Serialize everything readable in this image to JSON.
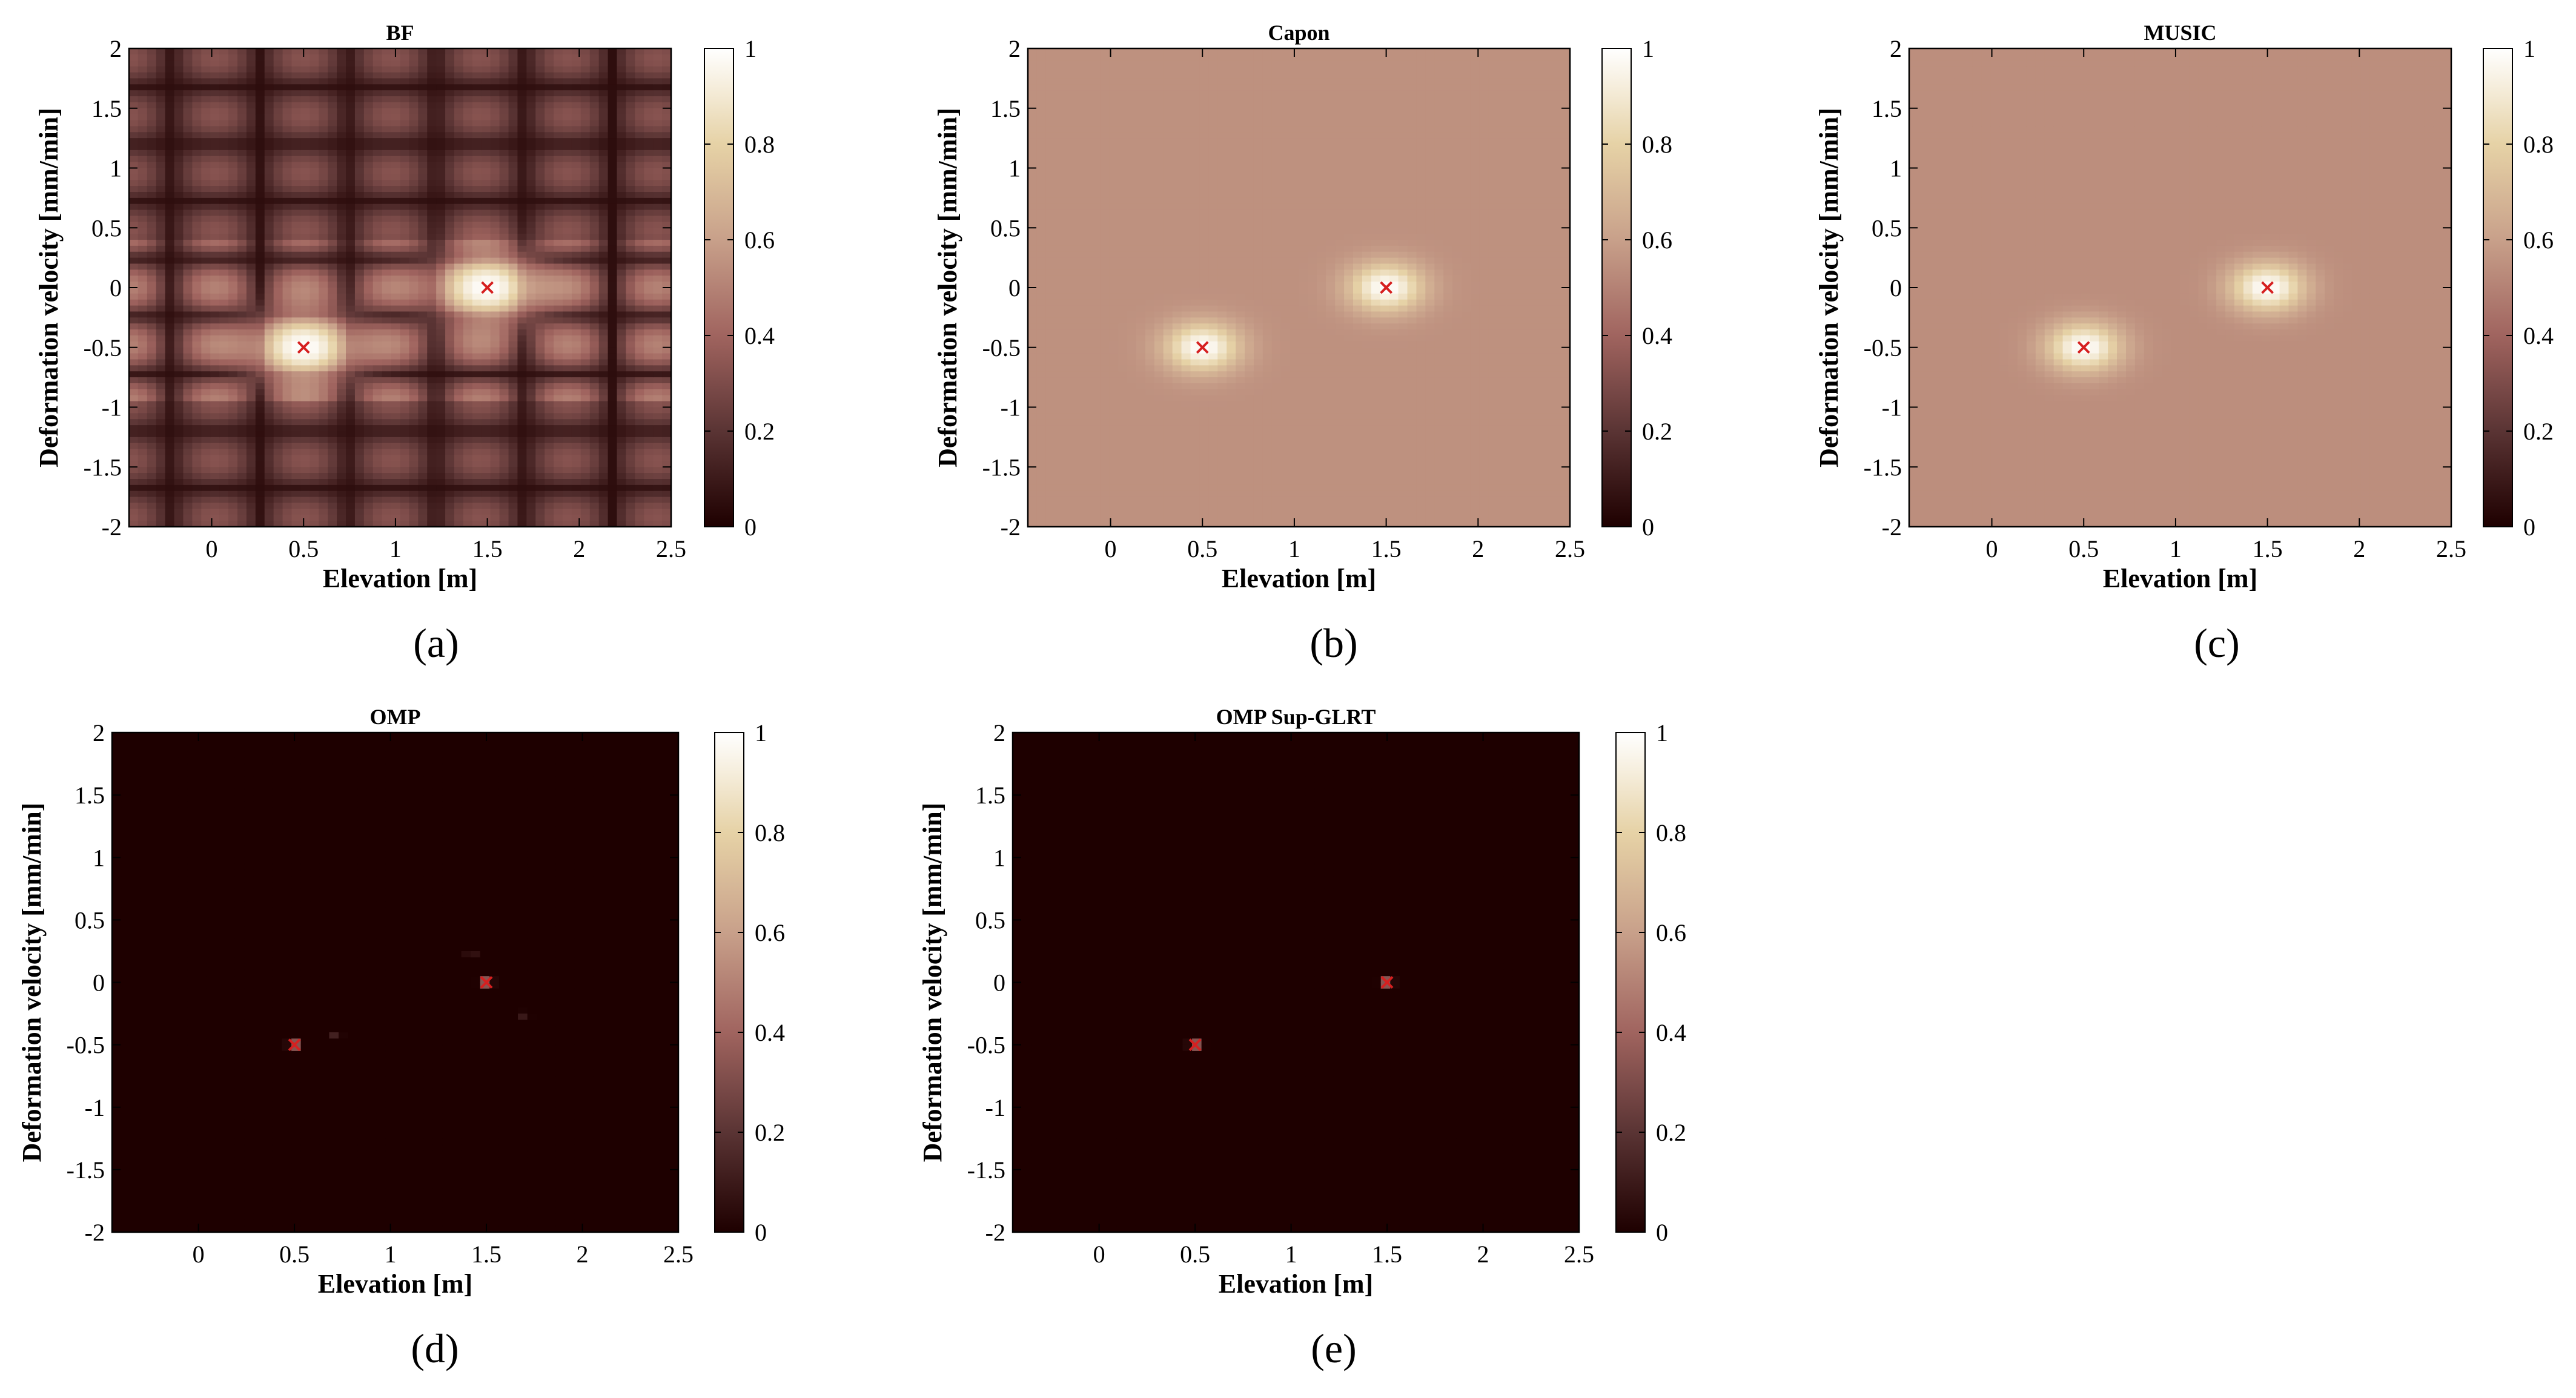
{
  "figure": {
    "colormap": [
      "#1e0000",
      "#5a3434",
      "#a0645f",
      "#c8a08a",
      "#e6d2a6",
      "#ffffff"
    ],
    "marker_color": "#d62020"
  },
  "chart_data": [
    {
      "type": "heatmap",
      "title": "BF",
      "xlabel": "Elevation [m]",
      "ylabel": "Deformation velocity [mm/min]",
      "caption": "(a)",
      "xlim": [
        -0.45,
        2.5
      ],
      "ylim": [
        -2,
        2
      ],
      "x_ticks": [
        "0",
        "0.5",
        "1",
        "1.5",
        "2",
        "2.5"
      ],
      "y_ticks": [
        "2",
        "1.5",
        "1",
        "0.5",
        "0",
        "-0.5",
        "-1",
        "-1.5",
        "-2"
      ],
      "colorbar": {
        "ticks": [
          "1",
          "0.8",
          "0.6",
          "0.4",
          "0.2",
          "0"
        ],
        "range": [
          0,
          1
        ]
      },
      "background_level": 0.3,
      "sidelobes": true,
      "peak_width": 0.28,
      "targets": [
        {
          "x": 0.5,
          "y": -0.5
        },
        {
          "x": 1.5,
          "y": 0
        }
      ]
    },
    {
      "type": "heatmap",
      "title": "Capon",
      "xlabel": "Elevation [m]",
      "ylabel": "Deformation velocity [mm/min]",
      "caption": "(b)",
      "xlim": [
        -0.45,
        2.5
      ],
      "ylim": [
        -2,
        2
      ],
      "x_ticks": [
        "0",
        "0.5",
        "1",
        "1.5",
        "2",
        "2.5"
      ],
      "y_ticks": [
        "2",
        "1.5",
        "1",
        "0.5",
        "0",
        "-0.5",
        "-1",
        "-1.5",
        "-2"
      ],
      "colorbar": {
        "ticks": [
          "1",
          "0.8",
          "0.6",
          "0.4",
          "0.2",
          "0"
        ],
        "range": [
          0,
          1
        ]
      },
      "background_level": 0.55,
      "sidelobes": false,
      "peak_width": 0.2,
      "targets": [
        {
          "x": 0.5,
          "y": -0.5
        },
        {
          "x": 1.5,
          "y": 0
        }
      ]
    },
    {
      "type": "heatmap",
      "title": "MUSIC",
      "xlabel": "Elevation [m]",
      "ylabel": "Deformation velocity [mm/min]",
      "caption": "(c)",
      "xlim": [
        -0.45,
        2.5
      ],
      "ylim": [
        -2,
        2
      ],
      "x_ticks": [
        "0",
        "0.5",
        "1",
        "1.5",
        "2",
        "2.5"
      ],
      "y_ticks": [
        "2",
        "1.5",
        "1",
        "0.5",
        "0",
        "-0.5",
        "-1",
        "-1.5",
        "-2"
      ],
      "colorbar": {
        "ticks": [
          "1",
          "0.8",
          "0.6",
          "0.4",
          "0.2",
          "0"
        ],
        "range": [
          0,
          1
        ]
      },
      "background_level": 0.54,
      "sidelobes": false,
      "peak_width": 0.2,
      "targets": [
        {
          "x": 0.5,
          "y": -0.5
        },
        {
          "x": 1.5,
          "y": 0
        }
      ]
    },
    {
      "type": "heatmap",
      "title": "OMP",
      "xlabel": "Elevation [m]",
      "ylabel": "Deformation velocity [mm/min]",
      "caption": "(d)",
      "xlim": [
        -0.45,
        2.5
      ],
      "ylim": [
        -2,
        2
      ],
      "x_ticks": [
        "0",
        "0.5",
        "1",
        "1.5",
        "2",
        "2.5"
      ],
      "y_ticks": [
        "2",
        "1.5",
        "1",
        "0.5",
        "0",
        "-0.5",
        "-1",
        "-1.5",
        "-2"
      ],
      "colorbar": {
        "ticks": [
          "1",
          "0.8",
          "0.6",
          "0.4",
          "0.2",
          "0"
        ],
        "range": [
          0,
          1
        ]
      },
      "background_level": 0.0,
      "sidelobes": false,
      "peak_width": 0.025,
      "targets": [
        {
          "x": 0.5,
          "y": -0.5
        },
        {
          "x": 1.5,
          "y": 0
        }
      ],
      "spurious": [
        {
          "x": 1.42,
          "y": 0.22,
          "v": 0.25
        },
        {
          "x": 0.72,
          "y": -0.43,
          "v": 0.22
        },
        {
          "x": 1.7,
          "y": -0.26,
          "v": 0.22
        }
      ]
    },
    {
      "type": "heatmap",
      "title": "OMP Sup-GLRT",
      "xlabel": "Elevation [m]",
      "ylabel": "Deformation velocity [mm/min]",
      "caption": "(e)",
      "xlim": [
        -0.45,
        2.5
      ],
      "ylim": [
        -2,
        2
      ],
      "x_ticks": [
        "0",
        "0.5",
        "1",
        "1.5",
        "2",
        "2.5"
      ],
      "y_ticks": [
        "2",
        "1.5",
        "1",
        "0.5",
        "0",
        "-0.5",
        "-1",
        "-1.5",
        "-2"
      ],
      "colorbar": {
        "ticks": [
          "1",
          "0.8",
          "0.6",
          "0.4",
          "0.2",
          "0"
        ],
        "range": [
          0,
          1
        ]
      },
      "background_level": 0.0,
      "sidelobes": false,
      "peak_width": 0.025,
      "targets": [
        {
          "x": 0.5,
          "y": -0.5
        },
        {
          "x": 1.5,
          "y": 0
        }
      ]
    }
  ]
}
